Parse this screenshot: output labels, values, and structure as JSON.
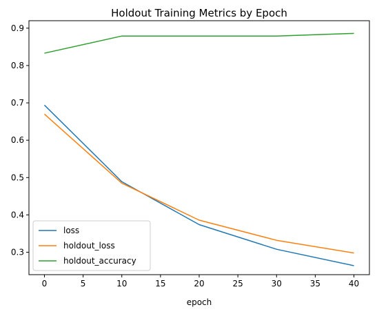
{
  "chart_data": {
    "type": "line",
    "title": "Holdout Training Metrics by Epoch",
    "xlabel": "epoch",
    "ylabel": "",
    "x": [
      0,
      10,
      20,
      30,
      40
    ],
    "xlim": [
      -2,
      42
    ],
    "ylim": [
      0.24,
      0.92
    ],
    "xticks": [
      0,
      5,
      10,
      15,
      20,
      25,
      30,
      35,
      40
    ],
    "xtick_labels": [
      "0",
      "5",
      "10",
      "15",
      "20",
      "25",
      "30",
      "35",
      "40"
    ],
    "yticks": [
      0.3,
      0.4,
      0.5,
      0.6,
      0.7,
      0.8,
      0.9
    ],
    "ytick_labels": [
      "0.3",
      "0.4",
      "0.5",
      "0.6",
      "0.7",
      "0.8",
      "0.9"
    ],
    "grid": false,
    "legend_position": "lower-left",
    "series": [
      {
        "name": "loss",
        "color": "#1f77b4",
        "values": [
          0.694,
          0.489,
          0.374,
          0.308,
          0.264
        ]
      },
      {
        "name": "holdout_loss",
        "color": "#ff7f0e",
        "values": [
          0.67,
          0.485,
          0.386,
          0.332,
          0.298
        ]
      },
      {
        "name": "holdout_accuracy",
        "color": "#2ca02c",
        "values": [
          0.833,
          0.879,
          0.879,
          0.879,
          0.886
        ]
      }
    ]
  }
}
